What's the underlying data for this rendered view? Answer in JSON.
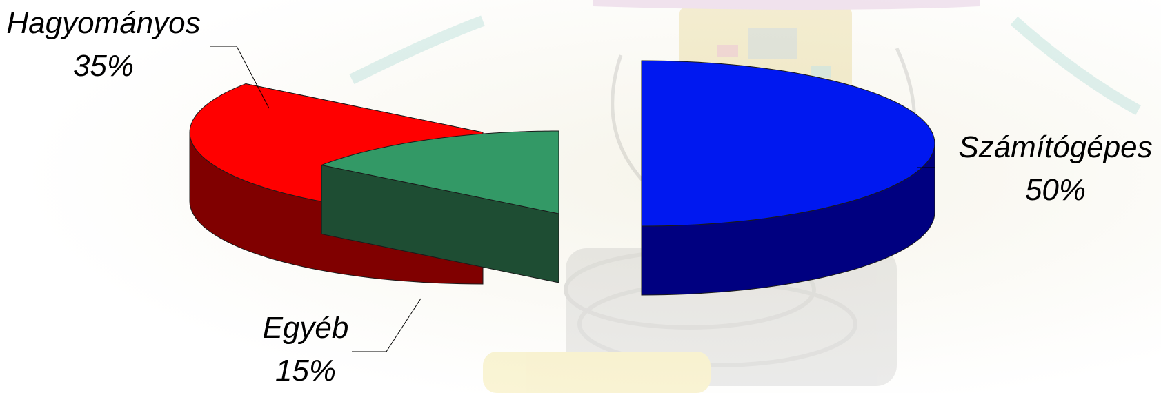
{
  "chart_data": {
    "type": "pie",
    "variant": "3d-exploded",
    "slices": [
      {
        "label": "Számítógépes",
        "value": 50,
        "value_label": "50%",
        "top_color": "#0018f0",
        "side_color": "#000080"
      },
      {
        "label": "Hagyományos",
        "value": 35,
        "value_label": "35%",
        "top_color": "#ff0000",
        "side_color": "#800000"
      },
      {
        "label": "Egyéb",
        "value": 15,
        "value_label": "15%",
        "top_color": "#339966",
        "side_color": "#1e4d33"
      }
    ]
  }
}
